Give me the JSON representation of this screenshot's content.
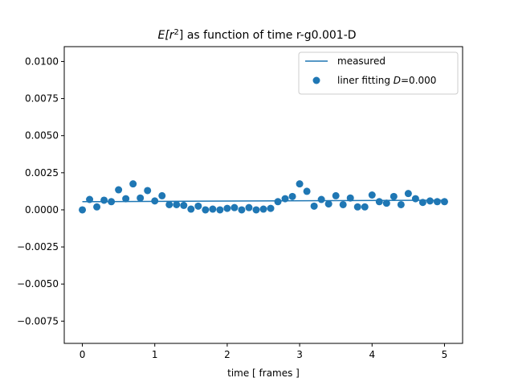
{
  "chart_data": {
    "type": "scatter",
    "title_prefix": "E[r",
    "title_sup": "2",
    "title_suffix": "] as function of time r-g0.001-D",
    "xlabel": "time [ frames ]",
    "ylabel": "",
    "xlim": [
      -0.25,
      5.25
    ],
    "ylim": [
      -0.009,
      0.011
    ],
    "xticks": [
      0,
      1,
      2,
      3,
      4,
      5
    ],
    "xtick_labels": [
      "0",
      "1",
      "2",
      "3",
      "4",
      "5"
    ],
    "yticks": [
      -0.0075,
      -0.005,
      -0.0025,
      0.0,
      0.0025,
      0.005,
      0.0075,
      0.01
    ],
    "ytick_labels": [
      "−0.0075",
      "−0.0050",
      "−0.0025",
      "0.0000",
      "0.0025",
      "0.0050",
      "0.0075",
      "0.0100"
    ],
    "grid": false,
    "legend_position": "top-right",
    "color": "#1f77b4",
    "series": [
      {
        "kind": "line",
        "name": "measured",
        "x": [
          0,
          5
        ],
        "y": [
          0.00055,
          0.00065
        ]
      },
      {
        "kind": "scatter",
        "name_prefix": "liner fitting ",
        "name_italic": "D",
        "name_suffix": "=0.000",
        "x": [
          0.0,
          0.1,
          0.2,
          0.3,
          0.4,
          0.5,
          0.6,
          0.7,
          0.8,
          0.9,
          1.0,
          1.1,
          1.2,
          1.3,
          1.4,
          1.5,
          1.6,
          1.7,
          1.8,
          1.9,
          2.0,
          2.1,
          2.2,
          2.3,
          2.4,
          2.5,
          2.6,
          2.7,
          2.8,
          2.9,
          3.0,
          3.1,
          3.2,
          3.3,
          3.4,
          3.5,
          3.6,
          3.7,
          3.8,
          3.9,
          4.0,
          4.1,
          4.2,
          4.3,
          4.4,
          4.5,
          4.6,
          4.7,
          4.8,
          4.9,
          5.0
        ],
        "y": [
          0.0,
          0.0007,
          0.0002,
          0.00065,
          0.00055,
          0.00135,
          0.00075,
          0.00175,
          0.0008,
          0.0013,
          0.0006,
          0.00095,
          0.00035,
          0.00035,
          0.0003,
          5e-05,
          0.00025,
          0.0,
          5e-05,
          0.0,
          0.0001,
          0.00015,
          0.0,
          0.00015,
          0.0,
          5e-05,
          0.0001,
          0.00055,
          0.00075,
          0.0009,
          0.00175,
          0.00125,
          0.00025,
          0.0007,
          0.0004,
          0.00095,
          0.00035,
          0.0008,
          0.0002,
          0.0002,
          0.001,
          0.00055,
          0.00045,
          0.0009,
          0.00035,
          0.0011,
          0.00075,
          0.0005,
          0.0006,
          0.00055,
          0.00055
        ]
      }
    ]
  }
}
